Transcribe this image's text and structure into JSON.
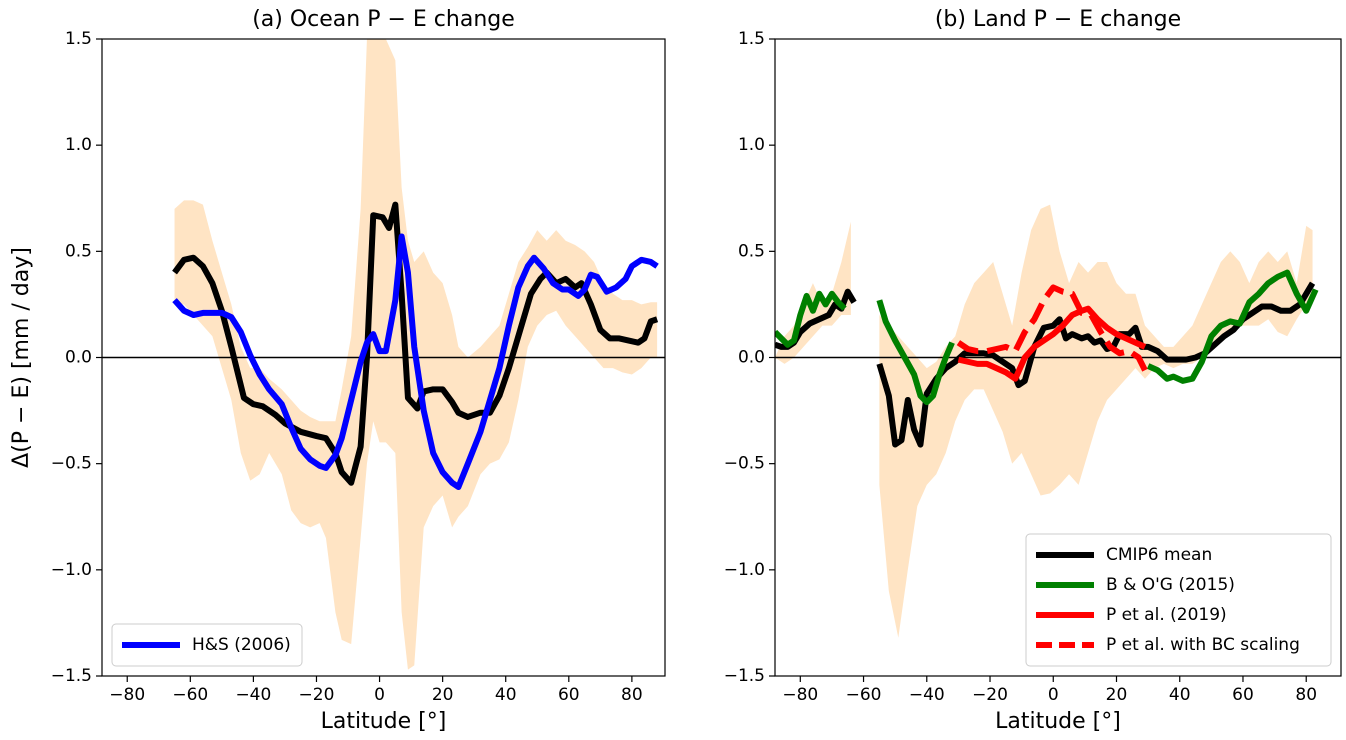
{
  "chart_data": [
    {
      "type": "line",
      "title": "(a) Ocean P − E change",
      "xlabel": "Latitude [°]",
      "ylabel": "Δ(P − E) [mm / day]",
      "xlim": [
        -88,
        90.5
      ],
      "ylim": [
        -1.5,
        1.5
      ],
      "xticks": [
        {
          "value": -80,
          "label": "−80"
        },
        {
          "value": -60,
          "label": "−60"
        },
        {
          "value": -40,
          "label": "−40"
        },
        {
          "value": -20,
          "label": "−20"
        },
        0,
        20,
        40,
        60,
        80
      ],
      "yticks": [
        {
          "value": -1.5,
          "label": "−1.5"
        },
        {
          "value": -1.0,
          "label": "−1.0"
        },
        {
          "value": -0.5,
          "label": "−0.5"
        },
        {
          "value": 0,
          "label": "0.0"
        },
        {
          "value": 0.5,
          "label": "0.5"
        },
        {
          "value": 1.0,
          "label": "1.0"
        },
        {
          "value": 1.5,
          "label": "1.5"
        }
      ],
      "hline": 0,
      "legend": "lower left",
      "band": {
        "color": "#ffe4c4",
        "x": [
          -65,
          -62,
          -59,
          -56,
          -53,
          -50,
          -47,
          -44,
          -41,
          -38,
          -35,
          -31,
          -28,
          -25,
          -22,
          -19,
          -17,
          -14,
          -12,
          -9,
          -6,
          -4,
          -2,
          0,
          2,
          5,
          7,
          9,
          11,
          14,
          17,
          20,
          23,
          25,
          28,
          32,
          35,
          38,
          41,
          44,
          47,
          50,
          53,
          56,
          59,
          62,
          65,
          68,
          71,
          74,
          77,
          80,
          83,
          86,
          88
        ],
        "upper": [
          0.7,
          0.74,
          0.74,
          0.72,
          0.55,
          0.4,
          0.25,
          0.05,
          -0.05,
          -0.05,
          -0.1,
          -0.15,
          -0.2,
          -0.25,
          -0.28,
          -0.3,
          -0.3,
          -0.3,
          -0.15,
          0.1,
          0.7,
          1.5,
          1.8,
          1.9,
          1.5,
          1.4,
          0.8,
          0.55,
          0.45,
          0.5,
          0.4,
          0.35,
          0.2,
          0.05,
          0.0,
          0.05,
          0.1,
          0.15,
          0.3,
          0.45,
          0.52,
          0.6,
          0.55,
          0.6,
          0.55,
          0.53,
          0.5,
          0.45,
          0.35,
          0.3,
          0.27,
          0.27,
          0.25,
          0.26,
          0.26
        ],
        "lower": [
          0.25,
          0.25,
          0.2,
          0.15,
          0.1,
          -0.05,
          -0.2,
          -0.45,
          -0.58,
          -0.55,
          -0.45,
          -0.55,
          -0.72,
          -0.78,
          -0.8,
          -0.78,
          -0.85,
          -1.2,
          -1.33,
          -1.35,
          -0.85,
          -0.5,
          -0.3,
          -0.4,
          -0.4,
          -0.45,
          -1.2,
          -1.47,
          -1.45,
          -0.8,
          -0.7,
          -0.65,
          -0.8,
          -0.75,
          -0.7,
          -0.55,
          -0.5,
          -0.48,
          -0.4,
          -0.2,
          0.05,
          0.15,
          0.2,
          0.22,
          0.15,
          0.1,
          0.05,
          0.0,
          -0.05,
          -0.05,
          -0.07,
          -0.08,
          -0.05,
          0.0,
          0.0
        ]
      },
      "series": [
        {
          "color": "#000000",
          "linestyle": "solid",
          "x": [
            -65,
            -62,
            -59,
            -56,
            -53,
            -50,
            -47,
            -43,
            -40,
            -37,
            -33,
            -30,
            -25,
            -20,
            -17,
            -14,
            -12,
            -9,
            -6,
            -4,
            -2,
            1,
            3,
            5,
            7,
            9,
            12,
            14,
            17,
            20,
            23,
            25,
            28,
            32,
            35,
            38,
            41,
            45,
            48,
            51,
            53,
            56,
            59,
            62,
            64,
            67,
            70,
            73,
            76,
            79,
            82,
            84,
            86,
            88
          ],
          "values": [
            0.4,
            0.46,
            0.47,
            0.43,
            0.35,
            0.22,
            0.05,
            -0.19,
            -0.22,
            -0.23,
            -0.27,
            -0.31,
            -0.35,
            -0.37,
            -0.38,
            -0.45,
            -0.54,
            -0.59,
            -0.42,
            0.0,
            0.67,
            0.66,
            0.61,
            0.72,
            0.3,
            -0.19,
            -0.24,
            -0.16,
            -0.15,
            -0.15,
            -0.21,
            -0.26,
            -0.28,
            -0.26,
            -0.26,
            -0.18,
            -0.05,
            0.15,
            0.3,
            0.37,
            0.4,
            0.35,
            0.37,
            0.33,
            0.35,
            0.25,
            0.13,
            0.09,
            0.09,
            0.08,
            0.07,
            0.09,
            0.17,
            0.18
          ]
        },
        {
          "name": "H&S (2006)",
          "color": "#0000ff",
          "linestyle": "solid",
          "x": [
            -65,
            -62,
            -59,
            -56,
            -53,
            -50,
            -47,
            -44,
            -41,
            -38,
            -35,
            -31,
            -28,
            -25,
            -22,
            -19,
            -17,
            -14,
            -12,
            -9,
            -6,
            -4,
            -2,
            0,
            2,
            5,
            7,
            9,
            11,
            14,
            17,
            20,
            23,
            25,
            28,
            32,
            35,
            38,
            41,
            44,
            47,
            49,
            52,
            55,
            58,
            60,
            63,
            65,
            67,
            69,
            72,
            75,
            78,
            80,
            83,
            86,
            88
          ],
          "values": [
            0.27,
            0.22,
            0.2,
            0.21,
            0.21,
            0.21,
            0.19,
            0.12,
            0.01,
            -0.08,
            -0.15,
            -0.22,
            -0.33,
            -0.43,
            -0.48,
            -0.51,
            -0.52,
            -0.46,
            -0.38,
            -0.2,
            -0.02,
            0.07,
            0.11,
            0.03,
            0.03,
            0.27,
            0.57,
            0.4,
            0.05,
            -0.25,
            -0.45,
            -0.54,
            -0.59,
            -0.61,
            -0.5,
            -0.35,
            -0.2,
            -0.05,
            0.15,
            0.33,
            0.43,
            0.47,
            0.42,
            0.35,
            0.32,
            0.32,
            0.29,
            0.32,
            0.39,
            0.38,
            0.31,
            0.33,
            0.37,
            0.43,
            0.46,
            0.45,
            0.43
          ]
        }
      ]
    },
    {
      "type": "line",
      "title": "(b) Land P − E change",
      "xlabel": "Latitude [°]",
      "xlim": [
        -88,
        91
      ],
      "ylim": [
        -1.5,
        1.5
      ],
      "xticks": [
        {
          "value": -80,
          "label": "−80"
        },
        {
          "value": -60,
          "label": "−60"
        },
        {
          "value": -40,
          "label": "−40"
        },
        {
          "value": -20,
          "label": "−20"
        },
        0,
        20,
        40,
        60,
        80
      ],
      "yticks": [
        {
          "value": -1.5,
          "label": "−1.5"
        },
        {
          "value": -1.0,
          "label": "−1.0"
        },
        {
          "value": -0.5,
          "label": "−0.5"
        },
        {
          "value": 0,
          "label": "0.0"
        },
        {
          "value": 0.5,
          "label": "0.5"
        },
        {
          "value": 1.0,
          "label": "1.0"
        },
        {
          "value": 1.5,
          "label": "1.5"
        }
      ],
      "hline": 0,
      "legend": "lower right",
      "band": {
        "color": "#ffe4c4",
        "x": [
          -88,
          -85,
          -82,
          -79,
          -76,
          -73,
          -70,
          -67,
          -64,
          -60,
          -55,
          -52,
          -49,
          -46,
          -43,
          -40,
          -37,
          -34,
          -31,
          -28,
          -25,
          -22,
          -19,
          -16,
          -13,
          -10,
          -7,
          -4,
          -1,
          2,
          5,
          8,
          11,
          14,
          17,
          20,
          23,
          26,
          29,
          32,
          35,
          38,
          41,
          44,
          47,
          50,
          53,
          56,
          59,
          62,
          65,
          68,
          71,
          74,
          77,
          80,
          82
        ],
        "upper": [
          0.0,
          0.1,
          0.15,
          0.25,
          0.35,
          0.25,
          0.3,
          0.45,
          0.64,
          null,
          0.2,
          0.15,
          0.1,
          0.05,
          0.0,
          -0.05,
          -0.02,
          0.05,
          0.1,
          0.25,
          0.35,
          0.4,
          0.45,
          0.3,
          0.15,
          0.4,
          0.6,
          0.7,
          0.72,
          0.5,
          0.35,
          0.45,
          0.4,
          0.45,
          0.45,
          0.35,
          0.3,
          0.3,
          0.15,
          0.1,
          0.05,
          0.05,
          0.1,
          0.15,
          0.25,
          0.35,
          0.45,
          0.5,
          0.45,
          0.35,
          0.45,
          0.5,
          0.45,
          0.5,
          0.35,
          0.62,
          0.6
        ],
        "lower": [
          0.0,
          -0.03,
          0.0,
          0.05,
          0.1,
          0.15,
          0.15,
          0.2,
          0.2,
          null,
          -0.6,
          -1.1,
          -1.32,
          -1.0,
          -0.7,
          -0.6,
          -0.55,
          -0.45,
          -0.3,
          -0.2,
          -0.15,
          -0.15,
          -0.25,
          -0.35,
          -0.5,
          -0.45,
          -0.55,
          -0.65,
          -0.64,
          -0.6,
          -0.55,
          -0.6,
          -0.45,
          -0.3,
          -0.2,
          -0.15,
          -0.1,
          -0.05,
          -0.1,
          -0.05,
          -0.03,
          -0.05,
          -0.03,
          -0.03,
          0.0,
          0.05,
          0.1,
          0.12,
          0.15,
          0.15,
          0.15,
          0.18,
          0.12,
          0.1,
          0.18,
          0.25,
          0.25
        ]
      },
      "series": [
        {
          "name": "CMIP6 mean",
          "color": "#000000",
          "linestyle": "solid",
          "x": [
            -88,
            -86,
            -84,
            -82,
            -80,
            -77,
            -74,
            -71,
            -69,
            -67,
            -65,
            -63,
            -60,
            -55,
            -52,
            -50,
            -48,
            -46,
            -44,
            -42,
            -40,
            -37,
            -34,
            -31,
            -28,
            -25,
            -22,
            -19,
            -16,
            -13,
            -11,
            -9,
            -6,
            -3,
            0,
            2,
            4,
            6,
            9,
            11,
            13,
            15,
            17,
            19,
            21,
            24,
            26,
            28,
            30,
            33,
            36,
            39,
            42,
            45,
            48,
            51,
            54,
            57,
            60,
            63,
            66,
            69,
            72,
            75,
            78,
            80,
            82
          ],
          "values": [
            0.06,
            0.05,
            0.05,
            0.07,
            0.12,
            0.16,
            0.18,
            0.2,
            0.25,
            0.23,
            0.31,
            0.26,
            null,
            -0.03,
            -0.18,
            -0.41,
            -0.39,
            -0.2,
            -0.34,
            -0.41,
            -0.17,
            -0.1,
            -0.05,
            -0.02,
            0.02,
            0.02,
            0.02,
            0.01,
            -0.02,
            -0.05,
            -0.13,
            -0.11,
            0.05,
            0.14,
            0.15,
            0.18,
            0.09,
            0.11,
            0.09,
            0.1,
            0.07,
            0.08,
            0.04,
            0.05,
            0.11,
            0.11,
            0.14,
            0.05,
            0.05,
            0.03,
            -0.01,
            -0.01,
            -0.01,
            0.0,
            0.02,
            0.06,
            0.1,
            0.13,
            0.18,
            0.21,
            0.24,
            0.24,
            0.22,
            0.22,
            0.25,
            0.3,
            0.35
          ]
        },
        {
          "name": "B & O'G (2015)",
          "color": "#008000",
          "linestyle": "solid",
          "x": [
            -88,
            -86,
            -84,
            -82,
            -80,
            -78,
            -76,
            -74,
            -72,
            -70,
            -68,
            -66,
            -60,
            -55,
            -53,
            -50,
            -47,
            -44,
            -42,
            -40,
            -38,
            -36,
            -34,
            -32,
            0,
            30,
            33,
            36,
            38,
            41,
            44,
            47,
            50,
            53,
            56,
            59,
            62,
            65,
            68,
            71,
            74,
            77,
            80,
            83
          ],
          "values": [
            0.12,
            0.09,
            0.06,
            0.08,
            0.2,
            0.29,
            0.22,
            0.3,
            0.25,
            0.3,
            0.26,
            0.23,
            null,
            0.27,
            0.17,
            0.08,
            0.0,
            -0.08,
            -0.18,
            -0.21,
            -0.18,
            -0.08,
            0.0,
            0.07,
            null,
            -0.04,
            -0.06,
            -0.1,
            -0.09,
            -0.11,
            -0.1,
            -0.02,
            0.1,
            0.15,
            0.17,
            0.16,
            0.26,
            0.3,
            0.35,
            0.38,
            0.4,
            0.3,
            0.22,
            0.32
          ]
        },
        {
          "name": "P et al. (2019)",
          "color": "#ff0000",
          "linestyle": "solid",
          "x": [
            -30,
            -27,
            -24,
            -21,
            -18,
            -15,
            -12,
            -9,
            -6,
            -3,
            0,
            3,
            6,
            9,
            11,
            14,
            17,
            20,
            23,
            26,
            29
          ],
          "values": [
            -0.01,
            -0.02,
            -0.03,
            -0.03,
            -0.05,
            -0.07,
            -0.1,
            0.0,
            0.05,
            0.08,
            0.11,
            0.15,
            0.2,
            0.22,
            0.23,
            0.18,
            0.14,
            0.11,
            0.09,
            0.07,
            0.05
          ]
        },
        {
          "name": "P et al. with BC scaling",
          "color": "#ff0000",
          "linestyle": "dashed",
          "x": [
            -30,
            -27,
            -24,
            -21,
            -18,
            -15,
            -12,
            -9,
            -6,
            -3,
            0,
            3,
            6,
            9,
            12,
            15,
            18,
            21,
            24,
            27,
            29
          ],
          "values": [
            0.07,
            0.04,
            0.03,
            0.03,
            0.04,
            0.05,
            0.03,
            0.12,
            0.18,
            0.27,
            0.33,
            0.31,
            0.3,
            0.21,
            0.2,
            0.12,
            0.05,
            0.02,
            0.03,
            0.0,
            -0.06
          ]
        }
      ]
    }
  ]
}
